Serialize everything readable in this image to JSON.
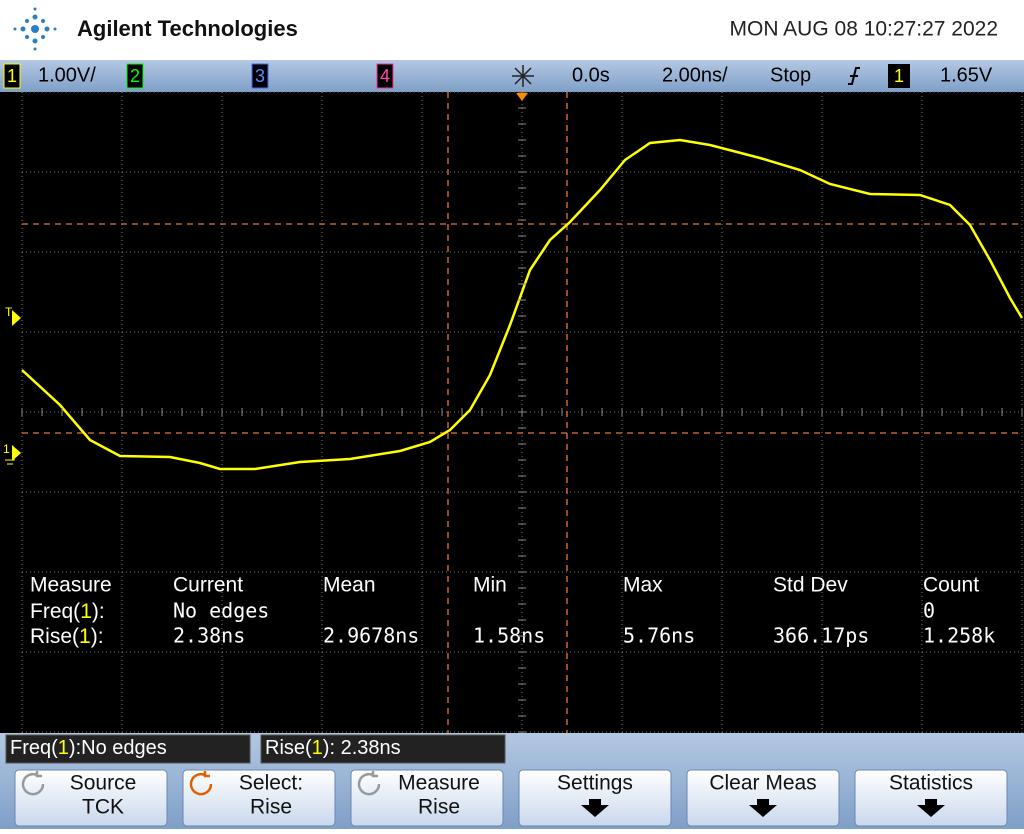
{
  "header": {
    "brand": "Agilent Technologies",
    "datetime": "MON AUG 08 10:27:27 2022"
  },
  "status_bar": {
    "ch1": "1",
    "ch1_scale": "1.00V/",
    "ch2": "2",
    "ch3": "3",
    "ch4": "4",
    "delay": "0.0s",
    "timebase": "2.00ns/",
    "run_state": "Stop",
    "trigger_source": "1",
    "trigger_level": "1.65V"
  },
  "markers": {
    "trigger": "T",
    "ground": "1"
  },
  "measurements": {
    "headers": [
      "Measure",
      "Current",
      "Mean",
      "Min",
      "Max",
      "Std Dev",
      "Count"
    ],
    "rows": [
      {
        "label": [
          "Freq(",
          "1",
          "):"
        ],
        "cells": [
          "No edges",
          "",
          "",
          "",
          "",
          "0"
        ]
      },
      {
        "label": [
          "Rise(",
          "1",
          "):"
        ],
        "cells": [
          "2.38ns",
          "2.9678ns",
          "1.58ns",
          "5.76ns",
          "366.17ps",
          "1.258k"
        ]
      }
    ]
  },
  "messages": [
    [
      "Freq(",
      "1",
      "):No edges"
    ],
    [
      "Rise(",
      "1",
      "): 2.38ns"
    ]
  ],
  "softkeys": [
    [
      "Source",
      "TCK"
    ],
    [
      "Select:",
      "Rise"
    ],
    [
      "Measure",
      "Rise"
    ],
    [
      "Settings"
    ],
    [
      "Clear Meas"
    ],
    [
      "Statistics"
    ]
  ]
}
